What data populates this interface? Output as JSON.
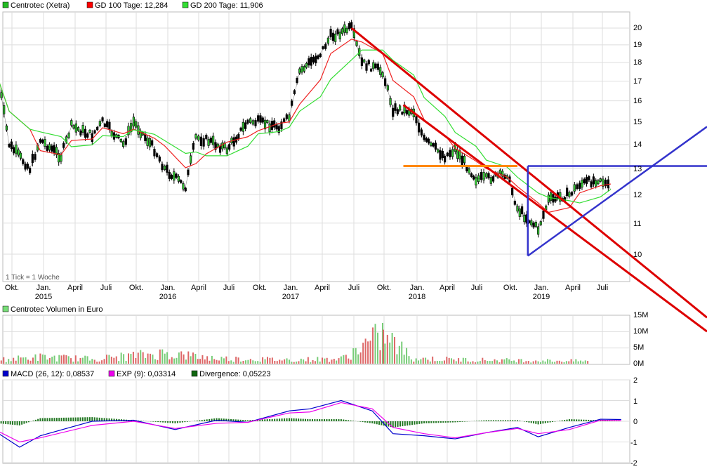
{
  "main_legend": [
    {
      "label": "Centrotec (Xetra)",
      "color": "#22bb22"
    },
    {
      "label": "GD 100 Tage: 12,284",
      "color": "#ff0000"
    },
    {
      "label": "GD 200 Tage: 11,906",
      "color": "#33dd33"
    }
  ],
  "tick_note": "1 Tick = 1 Woche",
  "volume_legend": {
    "label": "Centrotec Volumen in Euro",
    "color": "#77dd77"
  },
  "macd_legend": [
    {
      "label": "MACD (26, 12): 0,08537",
      "color": "#0000cc"
    },
    {
      "label": "EXP (9): 0,03314",
      "color": "#ee00ee"
    },
    {
      "label": "Divergence: 0,05223",
      "color": "#116611"
    }
  ],
  "x_axis": {
    "top": [
      "Okt.",
      "Jan.",
      "April",
      "Juli",
      "Okt.",
      "Jan.",
      "April",
      "Juli",
      "Okt.",
      "Jan.",
      "April",
      "Juli",
      "Okt.",
      "Jan.",
      "April",
      "Juli",
      "Okt.",
      "Jan.",
      "April",
      "Juli"
    ],
    "years": [
      "2015",
      "2016",
      "2017",
      "2018",
      "2019"
    ]
  },
  "chart_data": [
    {
      "type": "candlestick",
      "title": "Centrotec (Xetra)",
      "y_scale": "log",
      "ylim": [
        9.6,
        20.6
      ],
      "y_ticks": [
        "20",
        "19",
        "18",
        "17",
        "16",
        "15",
        "14",
        "13",
        "12",
        "11",
        "10"
      ],
      "series": [
        {
          "name": "Centrotec (Xetra)",
          "x": [
            "2014-09",
            "2014-10",
            "2014-12",
            "2015-01",
            "2015-03",
            "2015-04",
            "2015-06",
            "2015-07",
            "2015-09",
            "2015-10",
            "2015-12",
            "2016-01",
            "2016-03",
            "2016-04",
            "2016-05",
            "2016-07",
            "2016-09",
            "2016-10",
            "2016-12",
            "2017-01",
            "2017-02",
            "2017-04",
            "2017-05",
            "2017-07",
            "2017-08",
            "2017-10",
            "2017-11",
            "2018-01",
            "2018-02",
            "2018-04",
            "2018-05",
            "2018-07",
            "2018-08",
            "2018-10",
            "2018-11",
            "2019-01",
            "2019-02",
            "2019-04",
            "2019-05",
            "2019-07",
            "2019-08"
          ],
          "values": [
            17.0,
            14.0,
            13.0,
            14.2,
            13.5,
            14.8,
            14.4,
            15.0,
            14.0,
            15.0,
            13.8,
            13.0,
            12.3,
            14.3,
            14.2,
            13.8,
            15.0,
            15.0,
            14.8,
            15.2,
            17.5,
            18.5,
            19.5,
            20.0,
            18.0,
            17.5,
            15.6,
            15.5,
            14.2,
            13.5,
            13.8,
            12.6,
            12.6,
            12.8,
            11.5,
            10.8,
            11.8,
            12.0,
            12.4,
            12.6,
            12.2
          ]
        },
        {
          "name": "GD 100 Tage",
          "value": 12.284
        },
        {
          "name": "GD 200 Tage",
          "value": 11.906
        }
      ],
      "annotations": [
        {
          "kind": "trendline",
          "color": "#dd0000",
          "from": [
            "2017-07",
            20.0
          ],
          "to": [
            "2019-09",
            10.2
          ]
        },
        {
          "kind": "trendline",
          "color": "#dd0000",
          "from": [
            "2017-12",
            15.8
          ],
          "to": [
            "2019-09",
            9.6
          ]
        },
        {
          "kind": "horizontal",
          "color": "#ff8800",
          "value": 13.1,
          "from": "2017-12",
          "to": "2018-11"
        },
        {
          "kind": "triangle",
          "color": "#3333cc",
          "points": [
            [
              "2018-12",
              13.1
            ],
            [
              "2018-12",
              9.95
            ],
            [
              "2019-09",
              13.1
            ]
          ]
        }
      ]
    },
    {
      "type": "bar",
      "title": "Centrotec Volumen in Euro",
      "y_ticks": [
        "15M",
        "10M",
        "5M",
        "0M"
      ],
      "ylim": [
        0,
        15000000
      ],
      "x": [
        "2014-09",
        "2015-01",
        "2015-06",
        "2016-01",
        "2016-06",
        "2017-01",
        "2017-06",
        "2017-10",
        "2018-01",
        "2018-06",
        "2019-01",
        "2019-06"
      ],
      "values": [
        1500000,
        2500000,
        1800000,
        4000000,
        2000000,
        1500000,
        1800000,
        11000000,
        2000000,
        1500000,
        1200000,
        1000000
      ]
    },
    {
      "type": "line",
      "title": "MACD",
      "y_ticks": [
        "2",
        "1",
        "0",
        "-1",
        "-2"
      ],
      "ylim": [
        -2,
        2
      ],
      "x": [
        "2014-09",
        "2014-11",
        "2015-01",
        "2015-06",
        "2015-10",
        "2016-02",
        "2016-06",
        "2016-09",
        "2017-01",
        "2017-03",
        "2017-06",
        "2017-09",
        "2017-11",
        "2018-02",
        "2018-05",
        "2018-08",
        "2018-11",
        "2019-01",
        "2019-04",
        "2019-07",
        "2019-09"
      ],
      "series": [
        {
          "name": "MACD (26, 12)",
          "values": [
            -0.6,
            -1.25,
            -0.7,
            0.0,
            0.05,
            -0.4,
            0.05,
            -0.05,
            0.5,
            0.6,
            1.0,
            0.5,
            -0.6,
            -0.7,
            -0.85,
            -0.55,
            -0.3,
            -0.75,
            -0.3,
            0.1,
            0.085
          ]
        },
        {
          "name": "EXP (9)",
          "values": [
            -0.5,
            -1.0,
            -0.8,
            -0.2,
            0.0,
            -0.35,
            -0.1,
            -0.05,
            0.4,
            0.45,
            0.9,
            0.6,
            -0.3,
            -0.6,
            -0.8,
            -0.55,
            -0.35,
            -0.6,
            -0.4,
            0.05,
            0.033
          ]
        },
        {
          "name": "Divergence",
          "values": [
            -0.1,
            -0.2,
            0.15,
            0.2,
            0.05,
            -0.1,
            0.15,
            0.05,
            0.15,
            0.1,
            0.1,
            -0.1,
            -0.3,
            -0.1,
            -0.05,
            0.05,
            0.05,
            -0.15,
            0.1,
            0.05,
            0.052
          ]
        }
      ]
    }
  ]
}
